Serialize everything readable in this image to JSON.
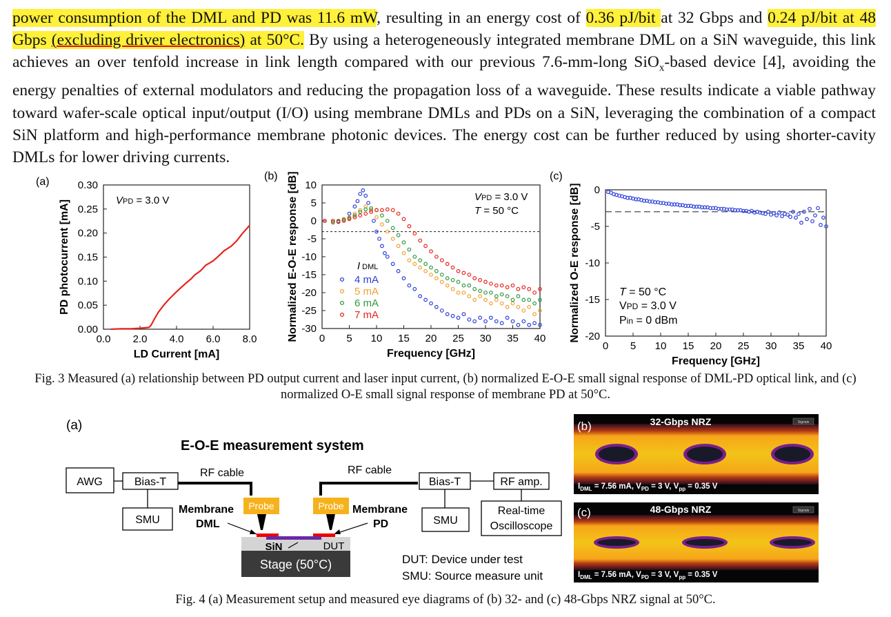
{
  "paragraph": {
    "s1_hl": "power consumption of the DML and PD was 11.6 mW",
    "s1_mid": ", resulting in an energy cost of ",
    "s1_hl2": "0.36 pJ/bit ",
    "s1_mid2": "at 32 Gbps and ",
    "s1_hl3a": "0.24 pJ/bit at 48 Gbps ",
    "s1_hl3b": "(excluding driver electronics)",
    "s1_hl3c": " at 50°C.",
    "s2": " By using a heterogeneously integrated membrane DML on a SiN waveguide, this link achieves an over tenfold increase in link length compared with our previous 7.6-mm-long SiO",
    "s2_sub": "x",
    "s3": "-based device [4], avoiding the energy penalties of external modulators and reducing the propagation loss of a waveguide. These results indicate a viable pathway toward wafer-scale optical input/output (I/O) using membrane DMLs and PDs on a SiN, leveraging the combination of a compact SiN platform and high-performance membrane photonic devices. The energy cost can be further reduced by using shorter-cavity DMLs for lower driving currents."
  },
  "fig3_caption": "Fig. 3 Measured (a) relationship between PD output current and laser input current, (b) normalized E-O-E small signal response of DML-PD optical link, and (c) normalized O-E small signal response of membrane PD at 50°C.",
  "fig4_caption": "Fig. 4 (a) Measurement setup and measured eye diagrams of (b) 32- and (c) 48-Gbps NRZ signal at 50°C.",
  "colors": {
    "red": "#e8231c",
    "blue": "#2a3fd8",
    "orange": "#f0a030",
    "green": "#2e9a3e",
    "highlight": "#fff03a"
  },
  "chart_data": [
    {
      "type": "line",
      "panel": "(a)",
      "annotation": "VPD = 3.0 V",
      "xlabel": "LD Current [mA]",
      "ylabel": "PD photocurrent [mA]",
      "xlim": [
        0,
        8
      ],
      "ylim": [
        0,
        0.3
      ],
      "xticks": [
        "0.0",
        "2.0",
        "4.0",
        "6.0",
        "8.0"
      ],
      "yticks": [
        "0.00",
        "0.05",
        "0.10",
        "0.15",
        "0.20",
        "0.25",
        "0.30"
      ],
      "series": [
        {
          "color": "#e8231c",
          "x": [
            0.4,
            1.0,
            1.5,
            2.0,
            2.3,
            2.5,
            2.6,
            2.8,
            3.0,
            3.3,
            3.6,
            4.0,
            4.4,
            4.8,
            5.0,
            5.3,
            5.6,
            6.0,
            6.3,
            6.6,
            7.0,
            7.3,
            7.6,
            8.0
          ],
          "y": [
            0.0,
            0.001,
            0.001,
            0.002,
            0.003,
            0.004,
            0.008,
            0.022,
            0.035,
            0.05,
            0.063,
            0.078,
            0.092,
            0.105,
            0.113,
            0.121,
            0.133,
            0.142,
            0.152,
            0.163,
            0.173,
            0.184,
            0.199,
            0.216
          ]
        }
      ]
    },
    {
      "type": "scatter",
      "panel": "(b)",
      "annotation": [
        "VPD = 3.0 V",
        "T = 50 °C"
      ],
      "legend_title": "I DML",
      "xlabel": "Frequency [GHz]",
      "ylabel": "Normalized E-O-E response [dB]",
      "xlim": [
        0,
        40
      ],
      "ylim": [
        -30,
        10
      ],
      "xticks": [
        "0",
        "5",
        "10",
        "15",
        "20",
        "25",
        "30",
        "35",
        "40"
      ],
      "yticks": [
        "10",
        "5",
        "0",
        "-5",
        "-10",
        "-15",
        "-20",
        "-25",
        "-30"
      ],
      "ref_line": -3,
      "series": [
        {
          "name": "4 mA",
          "color": "#2a3fd8",
          "x": [
            0.5,
            2,
            3,
            4,
            5,
            6,
            6.5,
            7,
            7.5,
            8,
            8.5,
            9,
            9.5,
            10,
            10.5,
            11,
            11.5,
            12,
            13,
            14,
            15,
            16,
            17,
            18,
            19,
            20,
            21,
            22,
            23,
            24,
            25,
            26,
            27,
            28,
            29,
            30,
            31,
            32,
            33,
            34,
            35,
            36,
            37,
            38,
            39,
            40
          ],
          "y": [
            0,
            -0.5,
            -0.3,
            0.5,
            2,
            4,
            5.5,
            7.5,
            8.5,
            7,
            5,
            3,
            0,
            -3,
            -5,
            -7,
            -9,
            -10,
            -12,
            -14,
            -16,
            -18,
            -19,
            -21,
            -22,
            -23,
            -24,
            -25,
            -26,
            -26.5,
            -27,
            -26,
            -27.5,
            -28,
            -27,
            -28,
            -27,
            -28,
            -28.5,
            -27,
            -28,
            -29,
            -28,
            -29,
            -28.5,
            -29
          ]
        },
        {
          "name": "5 mA",
          "color": "#f0a030",
          "x": [
            0.5,
            2,
            3,
            4,
            5,
            6,
            7,
            8,
            9,
            10,
            11,
            12,
            13,
            14,
            15,
            16,
            17,
            18,
            19,
            20,
            21,
            22,
            23,
            24,
            25,
            26,
            27,
            28,
            29,
            30,
            31,
            32,
            33,
            34,
            35,
            36,
            37,
            38,
            39,
            40
          ],
          "y": [
            0,
            -0.5,
            0,
            0.5,
            1,
            2,
            3,
            4,
            3,
            1,
            -1,
            -3,
            -5,
            -7,
            -9,
            -11,
            -12,
            -13,
            -14,
            -15,
            -16,
            -17,
            -18,
            -19,
            -20,
            -20,
            -21,
            -22,
            -21,
            -22,
            -23,
            -22,
            -23,
            -24,
            -23,
            -24,
            -25,
            -24,
            -26,
            -25
          ]
        },
        {
          "name": "6 mA",
          "color": "#2e9a3e",
          "x": [
            0.5,
            2,
            3,
            4,
            5,
            6,
            7,
            8,
            9,
            10,
            11,
            12,
            13,
            14,
            15,
            16,
            17,
            18,
            19,
            20,
            21,
            22,
            23,
            24,
            25,
            26,
            27,
            28,
            29,
            30,
            31,
            32,
            33,
            34,
            35,
            36,
            37,
            38,
            39,
            40
          ],
          "y": [
            0,
            -0.3,
            0,
            0.3,
            0.8,
            1.5,
            2.5,
            3.2,
            3.5,
            3,
            1.5,
            0,
            -2,
            -4,
            -6,
            -8,
            -10,
            -11,
            -12,
            -13,
            -14,
            -15,
            -16,
            -16.5,
            -17,
            -18,
            -18,
            -19,
            -19.5,
            -20,
            -20,
            -21,
            -20.5,
            -21,
            -22,
            -21,
            -22,
            -22,
            -23,
            -22
          ]
        },
        {
          "name": "7 mA",
          "color": "#e8231c",
          "x": [
            0.5,
            2,
            3,
            4,
            5,
            6,
            7,
            8,
            9,
            10,
            11,
            12,
            13,
            14,
            15,
            16,
            17,
            18,
            19,
            20,
            21,
            22,
            23,
            24,
            25,
            26,
            27,
            28,
            29,
            30,
            31,
            32,
            33,
            34,
            35,
            36,
            37,
            38,
            39,
            40
          ],
          "y": [
            0,
            0,
            -0.2,
            0,
            0.5,
            1,
            1.5,
            2,
            2.5,
            3,
            3,
            3.2,
            3,
            2,
            0.5,
            -1.5,
            -3.5,
            -5.5,
            -7,
            -8.5,
            -10,
            -11,
            -12,
            -13,
            -14,
            -14.5,
            -15,
            -16,
            -16.5,
            -17,
            -17.5,
            -18,
            -18,
            -18.5,
            -18,
            -19,
            -18.5,
            -19,
            -20,
            -19
          ]
        }
      ]
    },
    {
      "type": "scatter",
      "panel": "(c)",
      "annotation": [
        "T = 50 °C",
        "VPD = 3.0 V",
        "Pin = 0 dBm"
      ],
      "xlabel": "Frequency [GHz]",
      "ylabel": "Normalized O-E response [dB]",
      "xlim": [
        0,
        40
      ],
      "ylim": [
        -20,
        0
      ],
      "xticks": [
        "0",
        "5",
        "10",
        "15",
        "20",
        "25",
        "30",
        "35",
        "40"
      ],
      "yticks": [
        "0",
        "-5",
        "-10",
        "-15",
        "-20"
      ],
      "ref_line": -3,
      "series": [
        {
          "color": "#2a3fd8",
          "x": [
            0.5,
            1,
            1.5,
            2,
            2.5,
            3,
            3.5,
            4,
            4.5,
            5,
            5.5,
            6,
            6.5,
            7,
            7.5,
            8,
            8.5,
            9,
            9.5,
            10,
            10.5,
            11,
            11.5,
            12,
            12.5,
            13,
            13.5,
            14,
            14.5,
            15,
            15.5,
            16,
            16.5,
            17,
            17.5,
            18,
            18.5,
            19,
            19.5,
            20,
            20.5,
            21,
            21.5,
            22,
            22.5,
            23,
            23.5,
            24,
            24.5,
            25,
            25.5,
            26,
            26.5,
            27,
            27.5,
            28,
            28.5,
            29,
            29.5,
            30,
            30.5,
            31,
            31.5,
            32,
            32.5,
            33,
            33.5,
            34,
            34.5,
            35,
            35.5,
            36,
            36.5,
            37,
            37.5,
            38,
            38.5,
            39,
            39.5,
            40
          ],
          "y": [
            -0.3,
            -0.4,
            -0.6,
            -0.7,
            -0.8,
            -0.9,
            -1.0,
            -1.1,
            -1.1,
            -1.2,
            -1.3,
            -1.3,
            -1.4,
            -1.5,
            -1.5,
            -1.6,
            -1.6,
            -1.7,
            -1.7,
            -1.8,
            -1.8,
            -1.9,
            -1.9,
            -2.0,
            -2.0,
            -2.0,
            -2.1,
            -2.1,
            -2.2,
            -2.2,
            -2.2,
            -2.3,
            -2.3,
            -2.3,
            -2.4,
            -2.4,
            -2.4,
            -2.5,
            -2.5,
            -2.5,
            -2.6,
            -2.6,
            -2.6,
            -2.7,
            -2.7,
            -2.7,
            -2.8,
            -2.8,
            -2.8,
            -2.9,
            -2.9,
            -3.0,
            -2.9,
            -3.1,
            -3.0,
            -3.1,
            -3.2,
            -3.3,
            -3.0,
            -3.4,
            -3.2,
            -3.5,
            -3.1,
            -3.6,
            -3.3,
            -3.4,
            -3.7,
            -3.0,
            -3.8,
            -3.3,
            -4.5,
            -3.0,
            -4.0,
            -2.6,
            -4.3,
            -3.5,
            -2.5,
            -4.8,
            -3.8,
            -5.0
          ]
        }
      ]
    }
  ],
  "fig4": {
    "panel_a": "(a)",
    "title": "E-O-E measurement system",
    "rf_cable_left": "RF cable",
    "rf_cable_right": "RF cable",
    "awg": "AWG",
    "bias_t_left": "Bias-T",
    "bias_t_right": "Bias-T",
    "rf_amp": "RF amp.",
    "smu_left": "SMU",
    "smu_right": "SMU",
    "osc1": "Real-time",
    "osc2": "Oscilloscope",
    "probe_left": "Probe",
    "probe_right": "Probe",
    "membrane": "Membrane",
    "dml": "DML",
    "pd": "PD",
    "sin": "SiN",
    "dut": "DUT",
    "stage": "Stage (50°C)",
    "legend1": "DUT: Device under test",
    "legend2": "SMU: Source measure unit",
    "eye_b_label": "(b)",
    "eye_b_title": "32-Gbps NRZ",
    "eye_c_label": "(c)",
    "eye_c_title": "48-Gbps NRZ",
    "eye_params": "I",
    "eye_sub_dml": "DML",
    "eye_mid1": " = 7.56 mA,  V",
    "eye_sub_pd": "PD",
    "eye_mid2": " = 3 V, V",
    "eye_sub_pp": "pp",
    "eye_end": " = 0.35 V",
    "eye_btn": "Signals"
  }
}
